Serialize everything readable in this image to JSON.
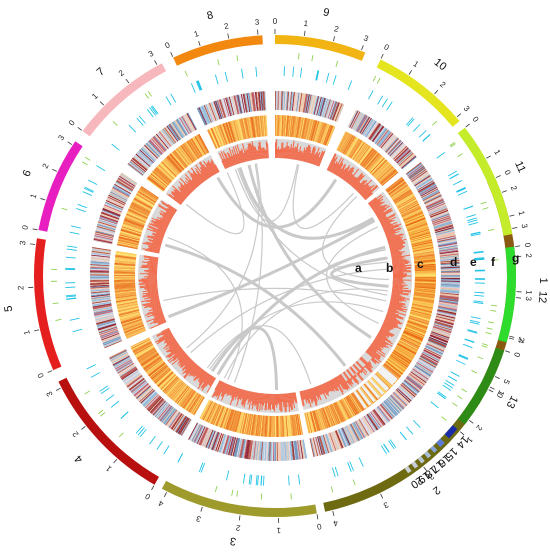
{
  "chromosomes": [
    {
      "label": "1",
      "color": "#8B5A12",
      "ticks": [
        "0",
        "1",
        "2",
        "3",
        "4",
        "5"
      ]
    },
    {
      "label": "2",
      "color": "#6E6A12",
      "ticks": [
        "0",
        "1",
        "2",
        "3",
        "4"
      ]
    },
    {
      "label": "3",
      "color": "#9E9A2C",
      "ticks": [
        "0",
        "1",
        "2",
        "3",
        "4"
      ]
    },
    {
      "label": "4",
      "color": "#B80F0F",
      "ticks": [
        "0",
        "1",
        "2",
        "3"
      ]
    },
    {
      "label": "5",
      "color": "#E51E1E",
      "ticks": [
        "0",
        "1",
        "2",
        "3"
      ]
    },
    {
      "label": "6",
      "color": "#E81FC0",
      "ticks": [
        "0",
        "1",
        "2",
        "3"
      ]
    },
    {
      "label": "7",
      "color": "#F7B8BD",
      "ticks": [
        "0",
        "1",
        "2",
        "3"
      ]
    },
    {
      "label": "8",
      "color": "#F2880F",
      "ticks": [
        "0",
        "1",
        "2",
        "3"
      ]
    },
    {
      "label": "9",
      "color": "#F2B412",
      "ticks": [
        "0",
        "1",
        "2",
        "3"
      ]
    },
    {
      "label": "10",
      "color": "#E4E41F",
      "ticks": [
        "0",
        "1",
        "2",
        "3"
      ]
    },
    {
      "label": "11",
      "color": "#C4EC2B",
      "ticks": [
        "0",
        "1",
        "2",
        "3"
      ]
    },
    {
      "label": "12",
      "color": "#2DDC2D",
      "ticks": [
        "0",
        "1",
        "2"
      ]
    },
    {
      "label": "13",
      "color": "#2E8B16",
      "ticks": [
        "0",
        "1",
        "2"
      ]
    },
    {
      "label": "14",
      "color": "#1A2BA8",
      "ticks": []
    },
    {
      "label": "15",
      "color": "#5B7BD6",
      "ticks": []
    },
    {
      "label": "16",
      "color": "#86A3D8",
      "ticks": []
    },
    {
      "label": "17",
      "color": "#A9BCD9",
      "ticks": []
    },
    {
      "label": "18",
      "color": "#B9C6D8",
      "ticks": []
    },
    {
      "label": "19",
      "color": "#C6CDD6",
      "ticks": []
    },
    {
      "label": "20",
      "color": "#CDD2D8",
      "ticks": []
    }
  ],
  "track_letters": [
    "a",
    "b",
    "c",
    "d",
    "e",
    "f",
    "g"
  ],
  "colors": {
    "link": "#C9C9C9",
    "histogram": "#F26B4B",
    "histogram_bg": "#D9D9D9",
    "density_light": "#FFE066",
    "density_dark": "#E8600A",
    "snp_blue": "#8AB7D9",
    "snp_red": "#8B1A2A",
    "marker_cyan": "#22C3E6",
    "marker_green": "#8FD14F"
  }
}
